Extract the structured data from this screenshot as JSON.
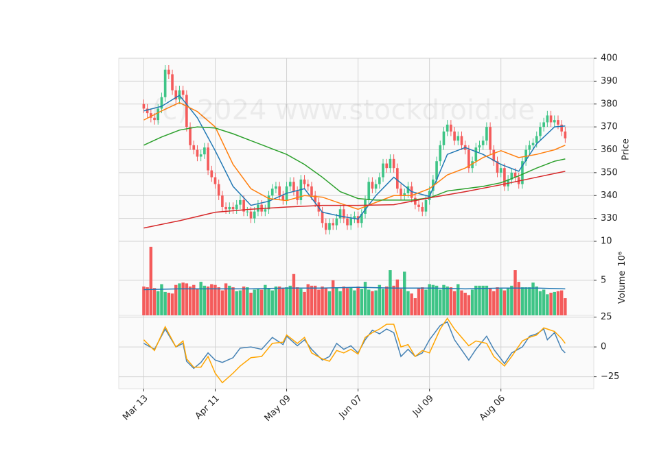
{
  "chart_data": [
    {
      "type": "candlestick",
      "annotation": "(c) 2024 www.stockdroid.de",
      "ylabel": "Price",
      "xlim": [
        -7,
        126
      ],
      "xticks": [
        {
          "value": 0,
          "label": "Mar 13"
        },
        {
          "value": 20,
          "label": "Apr 11"
        },
        {
          "value": 40,
          "label": "May 09"
        },
        {
          "value": 60,
          "label": "Jun 07"
        },
        {
          "value": 80,
          "label": "Jul 09"
        },
        {
          "value": 100,
          "label": "Aug 06"
        }
      ],
      "ylim": [
        320,
        400
      ],
      "yticks": [
        330,
        340,
        350,
        360,
        370,
        380,
        390,
        400
      ],
      "grid": true,
      "up_color": "#3ec486",
      "down_color": "#f45b5b",
      "open": [
        380,
        378,
        376,
        374,
        373,
        378,
        383,
        395,
        393,
        386,
        382,
        386,
        384,
        370,
        362,
        360,
        357,
        358,
        361,
        351,
        348,
        345,
        340,
        335,
        334,
        335,
        334,
        336,
        338,
        333,
        333,
        330,
        333,
        336,
        333,
        334,
        340,
        343,
        344,
        340,
        338,
        344,
        346,
        342,
        338,
        347,
        345,
        344,
        340,
        337,
        333,
        328,
        325,
        328,
        327,
        330,
        334,
        330,
        327,
        330,
        331,
        328,
        332,
        338,
        346,
        343,
        345,
        348,
        354,
        352,
        356,
        352,
        343,
        340,
        341,
        344,
        339,
        336,
        335,
        333,
        338,
        342,
        347,
        355,
        362,
        368,
        371,
        368,
        364,
        366,
        362,
        360,
        352,
        355,
        361,
        362,
        364,
        370,
        360,
        355,
        350,
        352,
        344,
        347,
        350,
        348,
        345,
        355,
        360,
        362,
        363,
        366,
        370,
        372,
        375,
        372,
        373,
        371,
        368
      ],
      "high": [
        382,
        380,
        378,
        376,
        380,
        385,
        397,
        397,
        395,
        388,
        388,
        388,
        386,
        372,
        364,
        362,
        360,
        363,
        363,
        353,
        350,
        347,
        342,
        337,
        337,
        337,
        338,
        340,
        340,
        335,
        335,
        335,
        338,
        338,
        336,
        342,
        345,
        346,
        346,
        342,
        346,
        348,
        348,
        344,
        349,
        349,
        347,
        346,
        342,
        339,
        335,
        330,
        330,
        330,
        332,
        336,
        336,
        332,
        332,
        333,
        333,
        334,
        340,
        348,
        348,
        347,
        350,
        356,
        356,
        358,
        358,
        354,
        345,
        343,
        346,
        346,
        341,
        338,
        337,
        340,
        344,
        349,
        357,
        364,
        370,
        373,
        373,
        370,
        368,
        368,
        364,
        362,
        357,
        363,
        364,
        366,
        372,
        372,
        362,
        357,
        354,
        354,
        349,
        352,
        352,
        350,
        357,
        362,
        364,
        365,
        368,
        372,
        374,
        377,
        377,
        375,
        375,
        373,
        370
      ],
      "low": [
        376,
        374,
        372,
        371,
        371,
        376,
        381,
        391,
        384,
        380,
        380,
        382,
        368,
        360,
        358,
        355,
        355,
        356,
        349,
        346,
        343,
        338,
        333,
        332,
        332,
        332,
        332,
        334,
        331,
        331,
        328,
        328,
        331,
        331,
        331,
        332,
        338,
        341,
        338,
        336,
        336,
        342,
        340,
        336,
        336,
        343,
        342,
        338,
        335,
        331,
        326,
        323,
        323,
        325,
        325,
        328,
        328,
        325,
        325,
        328,
        326,
        326,
        330,
        336,
        341,
        341,
        343,
        346,
        350,
        350,
        350,
        341,
        338,
        338,
        339,
        337,
        334,
        333,
        331,
        331,
        336,
        340,
        345,
        353,
        360,
        366,
        366,
        362,
        362,
        360,
        358,
        350,
        350,
        353,
        359,
        360,
        362,
        358,
        353,
        348,
        348,
        342,
        342,
        345,
        346,
        343,
        343,
        353,
        358,
        360,
        361,
        364,
        368,
        370,
        370,
        370,
        369,
        366,
        363
      ],
      "close": [
        378,
        376,
        374,
        373,
        378,
        383,
        395,
        393,
        386,
        382,
        386,
        384,
        370,
        362,
        360,
        357,
        358,
        361,
        351,
        348,
        345,
        340,
        335,
        334,
        335,
        334,
        336,
        338,
        333,
        333,
        330,
        333,
        336,
        333,
        334,
        340,
        343,
        344,
        340,
        338,
        344,
        346,
        342,
        338,
        347,
        345,
        344,
        340,
        337,
        333,
        328,
        325,
        328,
        327,
        330,
        334,
        330,
        327,
        330,
        331,
        328,
        332,
        338,
        346,
        343,
        345,
        348,
        354,
        352,
        356,
        352,
        343,
        340,
        341,
        344,
        339,
        336,
        335,
        333,
        338,
        342,
        347,
        355,
        362,
        368,
        371,
        368,
        364,
        366,
        362,
        360,
        352,
        355,
        361,
        362,
        364,
        370,
        360,
        355,
        350,
        352,
        344,
        347,
        350,
        348,
        345,
        355,
        360,
        362,
        363,
        366,
        370,
        372,
        375,
        372,
        373,
        371,
        368,
        365
      ],
      "series": [
        {
          "color": "#1f77b4",
          "x": [
            0,
            5,
            10,
            15,
            20,
            25,
            30,
            35,
            40,
            45,
            50,
            55,
            60,
            65,
            70,
            75,
            80,
            85,
            90,
            95,
            100,
            105,
            110,
            115,
            118
          ],
          "values": [
            377,
            379,
            383.8,
            374,
            359.6,
            344,
            335.7,
            337.5,
            341,
            343,
            332.7,
            331,
            329.7,
            340,
            348,
            341.7,
            339.6,
            358,
            361,
            358,
            353.6,
            350.6,
            362.6,
            370,
            370.4
          ]
        },
        {
          "color": "#ff7f0e",
          "x": [
            0,
            5,
            10,
            15,
            20,
            25,
            30,
            35,
            40,
            45,
            50,
            55,
            60,
            65,
            70,
            75,
            80,
            85,
            90,
            95,
            100,
            105,
            110,
            115,
            118
          ],
          "values": [
            373,
            377,
            380.6,
            376.7,
            370,
            353.6,
            343,
            338.7,
            337.8,
            340,
            339.3,
            336.6,
            334,
            337,
            340,
            340,
            343,
            349,
            352,
            356.6,
            359.6,
            356.6,
            358,
            360,
            362
          ]
        },
        {
          "color": "#2ca02c",
          "x": [
            0,
            5,
            10,
            15,
            20,
            25,
            30,
            35,
            40,
            45,
            50,
            55,
            60,
            65,
            70,
            75,
            80,
            85,
            90,
            95,
            100,
            105,
            110,
            115,
            118
          ],
          "values": [
            362,
            365.6,
            368.6,
            370,
            369.5,
            367,
            364,
            361,
            358,
            353.6,
            348,
            341.7,
            338.7,
            338,
            338,
            338,
            339,
            342,
            343,
            344,
            345.6,
            348.6,
            352,
            355,
            356
          ]
        },
        {
          "color": "#d62728",
          "x": [
            0,
            10,
            20,
            30,
            40,
            50,
            60,
            70,
            80,
            90,
            100,
            110,
            118
          ],
          "values": [
            325.8,
            329,
            332.7,
            334,
            335,
            335.7,
            335.7,
            336,
            339,
            341.7,
            344.7,
            348,
            350.6
          ]
        }
      ]
    },
    {
      "type": "bar",
      "ylabel": "Volume",
      "ylabel_exponent": "10⁶",
      "ylim": [
        0.5,
        10
      ],
      "yticks": [
        5,
        10
      ],
      "values": [
        4.2,
        4.1,
        9.3,
        4.0,
        3.6,
        4.5,
        3.5,
        3.4,
        3.3,
        4.4,
        4.6,
        4.7,
        4.6,
        4.2,
        4.4,
        3.9,
        4.8,
        4.3,
        4.2,
        4.5,
        4.4,
        4.1,
        3.7,
        4.6,
        4.3,
        4.1,
        3.6,
        3.7,
        4.2,
        4.1,
        3.4,
        3.8,
        3.9,
        3.8,
        4.4,
        4.0,
        3.7,
        4.2,
        4.2,
        4.0,
        4.1,
        4.3,
        5.8,
        4.1,
        3.9,
        3.5,
        4.5,
        4.3,
        4.3,
        3.8,
        4.2,
        4.0,
        3.6,
        5.0,
        4.1,
        3.6,
        4.2,
        4.0,
        4.1,
        3.7,
        4.2,
        3.9,
        4.8,
        3.8,
        3.6,
        3.7,
        4.4,
        3.9,
        4.2,
        6.3,
        4.3,
        5.1,
        3.9,
        6.1,
        3.6,
        3.3,
        2.7,
        4.0,
        4.1,
        3.8,
        4.5,
        4.4,
        4.3,
        3.8,
        4.4,
        4.2,
        4.1,
        3.6,
        4.5,
        3.7,
        3.4,
        3.1,
        3.8,
        4.3,
        4.3,
        4.3,
        4.3,
        4.0,
        3.6,
        4.1,
        3.9,
        3.7,
        4.0,
        4.3,
        6.3,
        4.8,
        4.1,
        4.1,
        4.1,
        4.7,
        4.2,
        3.6,
        3.8,
        3.2,
        3.4,
        3.5,
        3.6,
        3.7,
        2.7
      ],
      "series": [
        {
          "color": "#1f77b4",
          "x": [
            0,
            10,
            20,
            30,
            40,
            50,
            60,
            70,
            80,
            90,
            100,
            110,
            118
          ],
          "values": [
            3.8,
            3.9,
            3.9,
            3.9,
            4.0,
            4.0,
            4.1,
            4.0,
            4.0,
            3.9,
            4.0,
            4.0,
            3.9
          ]
        }
      ]
    },
    {
      "type": "line",
      "ylim": [
        -35,
        26.5
      ],
      "yticks": [
        {
          "value": -25,
          "label": "−25"
        },
        0,
        25
      ],
      "series": [
        {
          "color": "#4682b4",
          "x": [
            0,
            3,
            6,
            9,
            11,
            12,
            14,
            16,
            18,
            20,
            22,
            25,
            27,
            30,
            33,
            36,
            39,
            40,
            43,
            45,
            47,
            50,
            52,
            54,
            56,
            58,
            60,
            62,
            64,
            66,
            68,
            70,
            72,
            74,
            76,
            78,
            80,
            83,
            85,
            87,
            91,
            93,
            96,
            98,
            101,
            103,
            106,
            108,
            110,
            112,
            113,
            115,
            117,
            118
          ],
          "values": [
            3,
            -2,
            15,
            0,
            3,
            -12,
            -18,
            -13,
            -5,
            -11,
            -13,
            -9,
            -1,
            0,
            -2,
            8,
            2,
            9,
            1,
            6,
            -2,
            -11,
            -8,
            3,
            -2,
            1,
            -5,
            6,
            14,
            11,
            15,
            12,
            -8,
            -2,
            -8,
            -5,
            6,
            18,
            21,
            6,
            -11,
            -2,
            9,
            -2,
            -14,
            -5,
            0,
            9,
            11,
            15,
            6,
            12,
            -2,
            -5
          ]
        },
        {
          "color": "#ffa500",
          "x": [
            0,
            3,
            6,
            9,
            11,
            12,
            14,
            16,
            18,
            20,
            22,
            25,
            27,
            30,
            33,
            36,
            39,
            40,
            43,
            45,
            47,
            50,
            52,
            54,
            56,
            58,
            60,
            62,
            64,
            66,
            68,
            70,
            72,
            74,
            76,
            78,
            80,
            83,
            85,
            87,
            91,
            93,
            96,
            98,
            101,
            103,
            106,
            108,
            110,
            112,
            113,
            115,
            117,
            118
          ],
          "values": [
            6,
            -3,
            17,
            0,
            5,
            -10,
            -17,
            -17,
            -8,
            -22,
            -30,
            -22,
            -16,
            -9,
            -8,
            3,
            4,
            10,
            3,
            8,
            -5,
            -10,
            -12,
            -3,
            -5,
            -2,
            -6,
            8,
            12,
            15,
            19,
            19,
            0,
            2,
            -8,
            -3,
            -5,
            15,
            24,
            15,
            1,
            5,
            3,
            -8,
            -16,
            -8,
            5,
            8,
            10,
            16,
            15,
            13,
            7,
            3
          ]
        }
      ]
    }
  ]
}
